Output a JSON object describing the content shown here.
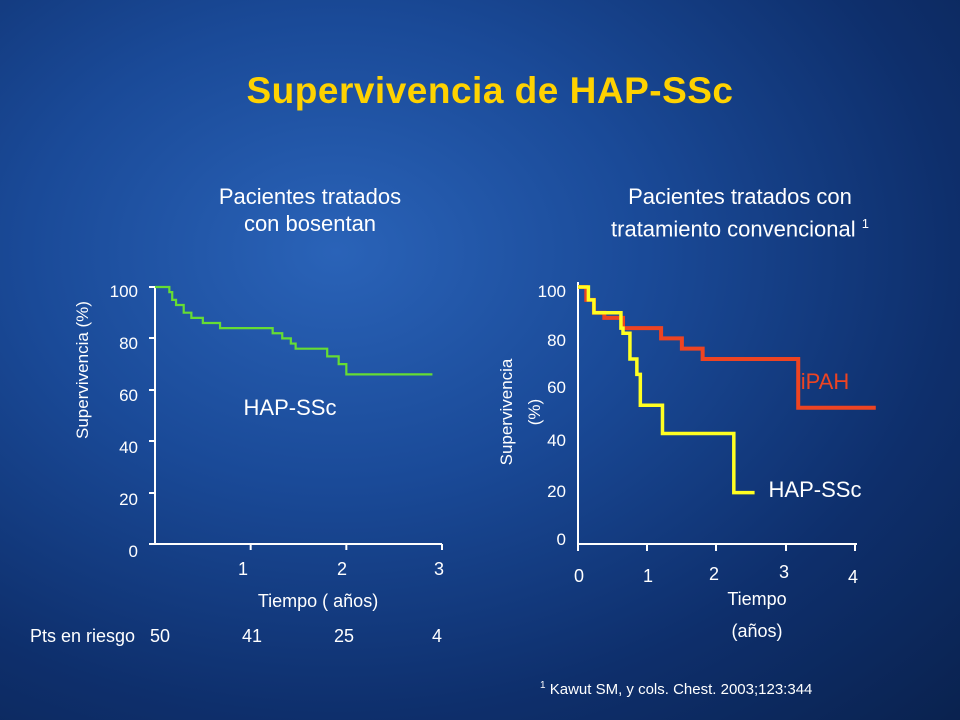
{
  "title": "Supervivencia de HAP-SSc",
  "footnote": {
    "marker": "1",
    "text": "Kawut SM, y cols. Chest. 2003;123:344"
  },
  "colors": {
    "title": "#ffd200",
    "bosentan_line": "#66dd33",
    "ipah_line": "#ee4422",
    "conventional_hap_line": "#ffff22"
  },
  "chart_data": [
    {
      "type": "line",
      "title_lines": [
        "Pacientes tratados",
        "con bosentan"
      ],
      "xlabel": "Tiempo ( años)",
      "ylabel": "Supervivencia (%)",
      "y_ticks": [
        "0",
        "20",
        "40",
        "60",
        "80",
        "100"
      ],
      "x_ticks": [
        "1",
        "2",
        "3"
      ],
      "xlim": [
        0,
        3
      ],
      "ylim": [
        0,
        100
      ],
      "series": [
        {
          "name": "HAP-SSc",
          "step": true,
          "points": [
            [
              0,
              100
            ],
            [
              0.12,
              100
            ],
            [
              0.15,
              98
            ],
            [
              0.18,
              95
            ],
            [
              0.22,
              93
            ],
            [
              0.28,
              93
            ],
            [
              0.3,
              90
            ],
            [
              0.38,
              88
            ],
            [
              0.5,
              86
            ],
            [
              0.68,
              84
            ],
            [
              0.95,
              84
            ],
            [
              1.23,
              82
            ],
            [
              1.3,
              82
            ],
            [
              1.33,
              80
            ],
            [
              1.42,
              78
            ],
            [
              1.47,
              76
            ],
            [
              1.75,
              76
            ],
            [
              1.8,
              73
            ],
            [
              1.92,
              70
            ],
            [
              2.0,
              66
            ],
            [
              2.9,
              66
            ]
          ]
        }
      ],
      "risk_table": {
        "label": "Pts en riesgo",
        "values": [
          "50",
          "41",
          "25",
          "4"
        ]
      }
    },
    {
      "type": "line",
      "title_lines": [
        "Pacientes tratados con",
        "tratamiento convencional"
      ],
      "title_sup": "1",
      "xlabel_lines": [
        "Tiempo",
        "(años)"
      ],
      "ylabel_lines": [
        "Supervivencia",
        "(%)"
      ],
      "y_ticks": [
        "0",
        "20",
        "40",
        "60",
        "80",
        "100"
      ],
      "x_ticks": [
        "0",
        "1",
        "2",
        "3",
        "4"
      ],
      "xlim": [
        0,
        4
      ],
      "ylim": [
        0,
        100
      ],
      "series": [
        {
          "name": "iPAH",
          "step": true,
          "points": [
            [
              0,
              100
            ],
            [
              0.12,
              95
            ],
            [
              0.23,
              90
            ],
            [
              0.38,
              88
            ],
            [
              0.65,
              84
            ],
            [
              1.15,
              84
            ],
            [
              1.2,
              80
            ],
            [
              1.45,
              80
            ],
            [
              1.5,
              76
            ],
            [
              1.75,
              76
            ],
            [
              1.8,
              72
            ],
            [
              3.12,
              72
            ],
            [
              3.18,
              53
            ],
            [
              4.3,
              53
            ]
          ]
        },
        {
          "name": "HAP-SSc",
          "step": true,
          "points": [
            [
              0,
              100
            ],
            [
              0.15,
              95
            ],
            [
              0.23,
              90
            ],
            [
              0.57,
              90
            ],
            [
              0.62,
              84
            ],
            [
              0.65,
              82
            ],
            [
              0.75,
              72
            ],
            [
              0.85,
              66
            ],
            [
              0.9,
              54
            ],
            [
              1.18,
              54
            ],
            [
              1.22,
              43
            ],
            [
              2.2,
              43
            ],
            [
              2.25,
              20
            ],
            [
              2.55,
              20
            ]
          ]
        }
      ]
    }
  ]
}
